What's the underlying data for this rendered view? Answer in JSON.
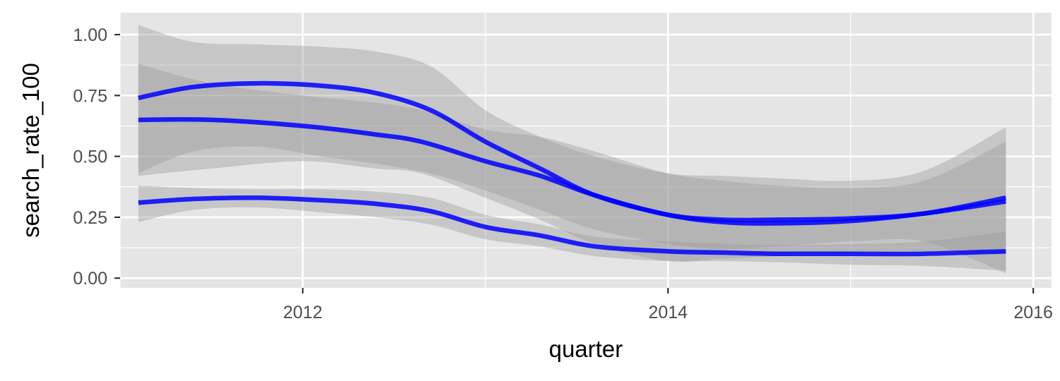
{
  "chart_data": {
    "type": "line",
    "title": "",
    "xlabel": "quarter",
    "ylabel": "search_rate_100",
    "xlim": [
      2011.0,
      2016.1
    ],
    "ylim": [
      -0.04,
      1.09
    ],
    "x_ticks": [
      {
        "value": 2012,
        "label": "2012"
      },
      {
        "value": 2014,
        "label": "2014"
      },
      {
        "value": 2016,
        "label": "2016"
      }
    ],
    "x_minor_ticks": [
      2011,
      2013,
      2015
    ],
    "y_ticks": [
      {
        "value": 0.0,
        "label": "0.00"
      },
      {
        "value": 0.25,
        "label": "0.25"
      },
      {
        "value": 0.5,
        "label": "0.50"
      },
      {
        "value": 0.75,
        "label": "0.75"
      },
      {
        "value": 1.0,
        "label": "1.00"
      }
    ],
    "y_minor_ticks": [
      0.125,
      0.375,
      0.625,
      0.875
    ],
    "grid": true,
    "legend": "none",
    "colors": {
      "panel": "#e5e5e5",
      "grid": "#ffffff",
      "line": "#0000ff",
      "ribbon": "#999999"
    },
    "series": [
      {
        "x": [
          2011.1,
          2011.4,
          2011.75,
          2012.1,
          2012.4,
          2012.7,
          2013.0,
          2013.3,
          2013.6,
          2014.0,
          2014.3,
          2014.6,
          2015.0,
          2015.4,
          2015.85
        ],
        "y": [
          0.74,
          0.785,
          0.8,
          0.79,
          0.76,
          0.69,
          0.56,
          0.45,
          0.34,
          0.26,
          0.23,
          0.225,
          0.235,
          0.265,
          0.315
        ],
        "lower": [
          0.43,
          0.52,
          0.54,
          0.5,
          0.47,
          0.43,
          0.36,
          0.28,
          0.2,
          0.14,
          0.12,
          0.13,
          0.15,
          0.15,
          0.02
        ],
        "upper": [
          1.04,
          0.97,
          0.96,
          0.95,
          0.93,
          0.87,
          0.69,
          0.58,
          0.5,
          0.43,
          0.42,
          0.41,
          0.4,
          0.44,
          0.62
        ]
      },
      {
        "x": [
          2011.1,
          2011.5,
          2012.0,
          2012.4,
          2012.65,
          2013.0,
          2013.3,
          2013.6,
          2014.0,
          2014.3,
          2014.6,
          2015.0,
          2015.4,
          2015.85
        ],
        "y": [
          0.65,
          0.65,
          0.625,
          0.59,
          0.56,
          0.48,
          0.42,
          0.34,
          0.26,
          0.24,
          0.24,
          0.245,
          0.265,
          0.33
        ],
        "lower": [
          0.42,
          0.45,
          0.48,
          0.45,
          0.43,
          0.33,
          0.24,
          0.14,
          0.07,
          0.08,
          0.09,
          0.1,
          0.11,
          0.1
        ],
        "upper": [
          0.88,
          0.8,
          0.75,
          0.72,
          0.69,
          0.61,
          0.58,
          0.52,
          0.43,
          0.4,
          0.38,
          0.37,
          0.4,
          0.56
        ]
      },
      {
        "x": [
          2011.1,
          2011.4,
          2011.75,
          2012.1,
          2012.4,
          2012.7,
          2013.0,
          2013.3,
          2013.6,
          2014.0,
          2014.3,
          2014.6,
          2015.0,
          2015.4,
          2015.85
        ],
        "y": [
          0.31,
          0.325,
          0.33,
          0.32,
          0.305,
          0.275,
          0.21,
          0.175,
          0.13,
          0.11,
          0.105,
          0.1,
          0.1,
          0.1,
          0.11
        ],
        "lower": [
          0.23,
          0.28,
          0.29,
          0.27,
          0.25,
          0.22,
          0.16,
          0.13,
          0.09,
          0.07,
          0.07,
          0.065,
          0.055,
          0.05,
          0.03
        ],
        "upper": [
          0.38,
          0.37,
          0.365,
          0.365,
          0.355,
          0.33,
          0.26,
          0.22,
          0.17,
          0.15,
          0.14,
          0.135,
          0.14,
          0.15,
          0.19
        ]
      }
    ]
  }
}
